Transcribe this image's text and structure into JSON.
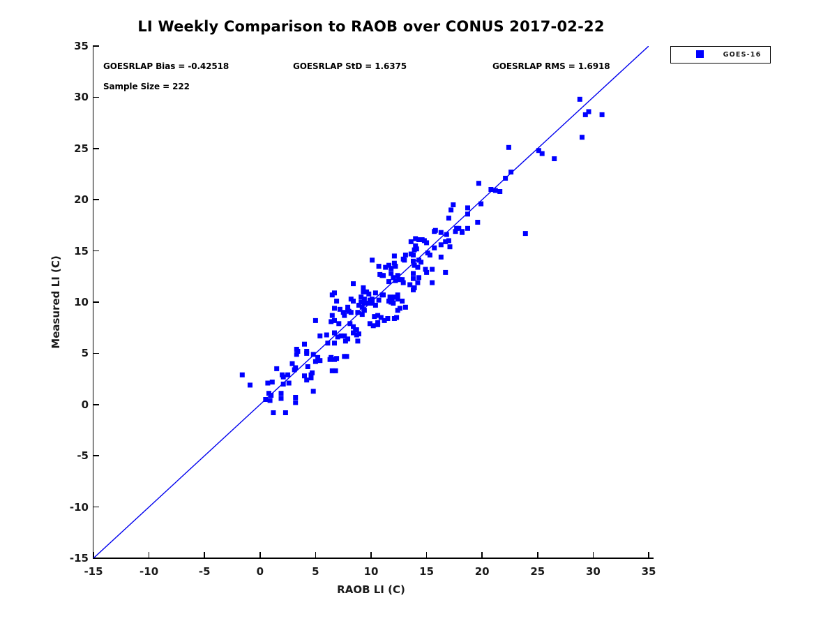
{
  "title": "LI Weekly Comparison to RAOB over CONUS 2017-02-22",
  "annotations": {
    "bias": "GOESRLAP Bias = -0.42518",
    "std": "GOESRLAP StD = 1.6375",
    "rms": "GOESRLAP RMS = 1.6918",
    "sample_size": "Sample Size = 222"
  },
  "legend": {
    "items": [
      {
        "label": "GOES-16",
        "marker": "square",
        "marker_color": "#0000ff"
      }
    ]
  },
  "colors": {
    "marker": "#0000ff",
    "reference_line": "#0000ee",
    "axis": "#000000",
    "background": "#ffffff"
  },
  "chart_data": {
    "type": "scatter",
    "title": "LI Weekly Comparison to RAOB over CONUS 2017-02-22",
    "xlabel": "RAOB LI (C)",
    "ylabel": "Measured LI (C)",
    "xlim": [
      -15,
      35
    ],
    "ylim": [
      -15,
      35
    ],
    "x_ticks": [
      -15,
      -10,
      -5,
      0,
      5,
      10,
      15,
      20,
      25,
      30,
      35
    ],
    "y_ticks": [
      -15,
      -10,
      -5,
      0,
      5,
      10,
      15,
      20,
      25,
      30,
      35
    ],
    "grid": false,
    "legend_position": "outside-top-right",
    "reference_line": {
      "type": "identity",
      "from": [
        -15,
        -15
      ],
      "to": [
        35,
        35
      ]
    },
    "series": [
      {
        "name": "GOES-16",
        "marker": "square",
        "color": "#0000ff",
        "points": [
          [
            -1.6,
            2.9
          ],
          [
            -0.9,
            1.9
          ],
          [
            0.5,
            0.5
          ],
          [
            0.8,
            1.1
          ],
          [
            1.0,
            0.9
          ],
          [
            0.9,
            0.4
          ],
          [
            1.1,
            2.2
          ],
          [
            0.7,
            2.1
          ],
          [
            1.5,
            3.5
          ],
          [
            1.9,
            1.1
          ],
          [
            1.9,
            0.6
          ],
          [
            1.2,
            -0.8
          ],
          [
            2.3,
            -0.8
          ],
          [
            2.0,
            2.9
          ],
          [
            2.1,
            2.7
          ],
          [
            2.1,
            2.0
          ],
          [
            2.5,
            2.9
          ],
          [
            2.6,
            2.1
          ],
          [
            3.2,
            0.7
          ],
          [
            3.2,
            0.2
          ],
          [
            3.2,
            3.6
          ],
          [
            2.9,
            4.0
          ],
          [
            3.1,
            3.4
          ],
          [
            3.3,
            5.4
          ],
          [
            3.3,
            4.9
          ],
          [
            3.4,
            5.2
          ],
          [
            4.0,
            2.8
          ],
          [
            4.6,
            2.9
          ],
          [
            4.2,
            2.4
          ],
          [
            4.6,
            2.6
          ],
          [
            4.3,
            3.7
          ],
          [
            4.7,
            3.1
          ],
          [
            4.8,
            1.3
          ],
          [
            4.2,
            5.0
          ],
          [
            4.0,
            5.9
          ],
          [
            4.2,
            5.2
          ],
          [
            4.8,
            4.9
          ],
          [
            5.0,
            4.2
          ],
          [
            5.4,
            4.3
          ],
          [
            5.2,
            4.6
          ],
          [
            5.0,
            8.2
          ],
          [
            5.4,
            6.7
          ],
          [
            6.3,
            4.4
          ],
          [
            6.9,
            4.5
          ],
          [
            7.6,
            4.7
          ],
          [
            6.5,
            3.3
          ],
          [
            6.8,
            3.3
          ],
          [
            6.4,
            4.6
          ],
          [
            6.7,
            4.4
          ],
          [
            7.8,
            4.7
          ],
          [
            6.0,
            6.8
          ],
          [
            6.1,
            6.0
          ],
          [
            6.7,
            6.0
          ],
          [
            6.7,
            7.0
          ],
          [
            7.0,
            6.6
          ],
          [
            7.3,
            6.7
          ],
          [
            7.7,
            6.2
          ],
          [
            7.6,
            6.7
          ],
          [
            7.9,
            6.4
          ],
          [
            8.8,
            6.2
          ],
          [
            8.4,
            7.0
          ],
          [
            8.7,
            6.8
          ],
          [
            8.4,
            7.6
          ],
          [
            8.7,
            7.3
          ],
          [
            8.1,
            7.9
          ],
          [
            6.4,
            8.1
          ],
          [
            6.7,
            8.2
          ],
          [
            7.1,
            7.9
          ],
          [
            6.5,
            8.7
          ],
          [
            6.7,
            9.4
          ],
          [
            7.6,
            8.7
          ],
          [
            8.0,
            9.1
          ],
          [
            7.5,
            9.0
          ],
          [
            7.9,
            9.2
          ],
          [
            8.2,
            9.0
          ],
          [
            7.9,
            9.5
          ],
          [
            7.2,
            9.3
          ],
          [
            6.9,
            10.1
          ],
          [
            6.7,
            10.9
          ],
          [
            6.5,
            10.7
          ],
          [
            8.4,
            10.1
          ],
          [
            8.2,
            10.3
          ],
          [
            8.4,
            11.8
          ],
          [
            8.6,
            7.3
          ],
          [
            8.9,
            6.9
          ],
          [
            8.8,
            9.0
          ],
          [
            8.9,
            9.7
          ],
          [
            9.2,
            9.5
          ],
          [
            9.2,
            8.8
          ],
          [
            9.4,
            9.2
          ],
          [
            9.4,
            9.9
          ],
          [
            9.8,
            9.9
          ],
          [
            10.1,
            9.9
          ],
          [
            10.4,
            9.7
          ],
          [
            9.3,
            11.0
          ],
          [
            9.8,
            10.8
          ],
          [
            9.4,
            10.3
          ],
          [
            9.9,
            10.2
          ],
          [
            9.3,
            11.4
          ],
          [
            9.6,
            11.0
          ],
          [
            9.1,
            10.5
          ],
          [
            9.1,
            10.0
          ],
          [
            10.6,
            8.7
          ],
          [
            10.9,
            8.5
          ],
          [
            11.2,
            8.2
          ],
          [
            11.5,
            8.4
          ],
          [
            9.9,
            7.9
          ],
          [
            10.2,
            7.7
          ],
          [
            10.6,
            7.8
          ],
          [
            10.3,
            8.6
          ],
          [
            10.6,
            8.0
          ],
          [
            10.4,
            10.9
          ],
          [
            11.0,
            10.7
          ],
          [
            10.1,
            10.3
          ],
          [
            10.7,
            10.2
          ],
          [
            10.1,
            10.1
          ],
          [
            11.1,
            10.7
          ],
          [
            11.6,
            10.1
          ],
          [
            11.7,
            10.5
          ],
          [
            11.9,
            10.2
          ],
          [
            11.8,
            10.0
          ],
          [
            12.0,
            9.9
          ],
          [
            12.1,
            10.5
          ],
          [
            12.4,
            10.3
          ],
          [
            12.4,
            10.7
          ],
          [
            12.8,
            10.1
          ],
          [
            12.6,
            9.4
          ],
          [
            12.4,
            9.2
          ],
          [
            13.1,
            9.5
          ],
          [
            12.3,
            8.5
          ],
          [
            12.1,
            8.4
          ],
          [
            10.1,
            14.1
          ],
          [
            10.7,
            13.5
          ],
          [
            10.8,
            12.7
          ],
          [
            11.0,
            12.6
          ],
          [
            11.3,
            13.4
          ],
          [
            11.6,
            13.6
          ],
          [
            11.8,
            13.3
          ],
          [
            12.2,
            13.5
          ],
          [
            12.1,
            14.5
          ],
          [
            12.1,
            13.8
          ],
          [
            12.9,
            14.2
          ],
          [
            13.0,
            14.1
          ],
          [
            11.8,
            12.8
          ],
          [
            12.0,
            12.4
          ],
          [
            12.4,
            12.6
          ],
          [
            12.6,
            12.2
          ],
          [
            12.2,
            12.1
          ],
          [
            11.6,
            12.0
          ],
          [
            11.1,
            12.6
          ],
          [
            12.8,
            12.2
          ],
          [
            12.9,
            11.9
          ],
          [
            13.8,
            12.8
          ],
          [
            13.8,
            14.6
          ],
          [
            13.9,
            15.1
          ],
          [
            14.0,
            15.5
          ],
          [
            13.6,
            14.7
          ],
          [
            13.8,
            14.0
          ],
          [
            13.9,
            13.6
          ],
          [
            14.2,
            13.4
          ],
          [
            14.5,
            13.9
          ],
          [
            14.9,
            13.2
          ],
          [
            15.5,
            13.2
          ],
          [
            14.3,
            14.1
          ],
          [
            13.8,
            12.3
          ],
          [
            14.3,
            12.4
          ],
          [
            13.5,
            11.7
          ],
          [
            13.9,
            11.4
          ],
          [
            13.8,
            11.2
          ],
          [
            14.2,
            11.9
          ],
          [
            15.0,
            12.9
          ],
          [
            15.5,
            11.9
          ],
          [
            15.1,
            14.8
          ],
          [
            15.3,
            14.6
          ],
          [
            13.1,
            14.6
          ],
          [
            14.1,
            15.2
          ],
          [
            13.6,
            15.9
          ],
          [
            14.0,
            16.2
          ],
          [
            14.3,
            16.1
          ],
          [
            14.6,
            16.1
          ],
          [
            14.8,
            16.0
          ],
          [
            15.0,
            15.8
          ],
          [
            15.7,
            15.3
          ],
          [
            16.3,
            15.6
          ],
          [
            16.7,
            15.9
          ],
          [
            17.1,
            15.4
          ],
          [
            16.3,
            14.4
          ],
          [
            16.7,
            12.9
          ],
          [
            15.7,
            16.9
          ],
          [
            16.3,
            16.8
          ],
          [
            16.8,
            16.6
          ],
          [
            17.6,
            16.9
          ],
          [
            18.2,
            16.8
          ],
          [
            15.8,
            17.0
          ],
          [
            17.0,
            16.0
          ],
          [
            17.4,
            19.5
          ],
          [
            17.2,
            19.0
          ],
          [
            17.0,
            18.2
          ],
          [
            18.7,
            19.2
          ],
          [
            18.7,
            18.6
          ],
          [
            19.6,
            17.8
          ],
          [
            17.7,
            17.2
          ],
          [
            17.9,
            17.2
          ],
          [
            18.2,
            16.9
          ],
          [
            18.7,
            17.2
          ],
          [
            19.9,
            19.6
          ],
          [
            19.7,
            21.6
          ],
          [
            20.8,
            21.0
          ],
          [
            21.2,
            20.9
          ],
          [
            21.6,
            20.8
          ],
          [
            22.1,
            22.1
          ],
          [
            22.6,
            22.7
          ],
          [
            22.4,
            25.1
          ],
          [
            23.9,
            16.7
          ],
          [
            25.1,
            24.8
          ],
          [
            25.4,
            24.5
          ],
          [
            26.5,
            24.0
          ],
          [
            29.0,
            26.1
          ],
          [
            28.8,
            29.8
          ],
          [
            29.6,
            28.6
          ],
          [
            29.3,
            28.3
          ],
          [
            30.8,
            28.3
          ]
        ]
      }
    ]
  }
}
